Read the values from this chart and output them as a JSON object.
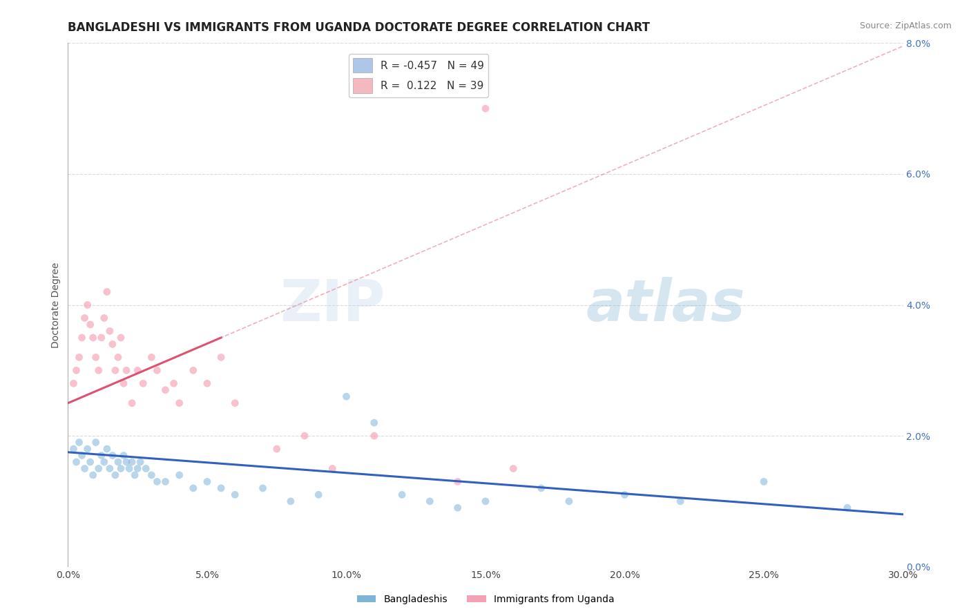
{
  "title": "BANGLADESHI VS IMMIGRANTS FROM UGANDA DOCTORATE DEGREE CORRELATION CHART",
  "source": "Source: ZipAtlas.com",
  "ylabel": "Doctorate Degree",
  "xlim": [
    0.0,
    30.0
  ],
  "ylim": [
    0.0,
    8.0
  ],
  "xticks": [
    0.0,
    5.0,
    10.0,
    15.0,
    20.0,
    25.0,
    30.0
  ],
  "yticks": [
    0.0,
    2.0,
    4.0,
    6.0,
    8.0
  ],
  "watermark_zip": "ZIP",
  "watermark_atlas": "atlas",
  "background_color": "#ffffff",
  "grid_color": "#cccccc",
  "blue_color": "#7fb3d8",
  "pink_color": "#f4a0b5",
  "blue_line_color": "#3060c0",
  "pink_line_color": "#e05070",
  "dashed_line_color": "#e08090",
  "blue_scatter": {
    "x": [
      0.2,
      0.3,
      0.4,
      0.5,
      0.6,
      0.7,
      0.8,
      0.9,
      1.0,
      1.1,
      1.2,
      1.3,
      1.4,
      1.5,
      1.6,
      1.7,
      1.8,
      1.9,
      2.0,
      2.1,
      2.2,
      2.3,
      2.4,
      2.5,
      2.6,
      2.8,
      3.0,
      3.2,
      3.5,
      4.0,
      4.5,
      5.0,
      5.5,
      6.0,
      7.0,
      8.0,
      9.0,
      10.0,
      11.0,
      12.0,
      13.0,
      14.0,
      15.0,
      17.0,
      18.0,
      20.0,
      22.0,
      25.0,
      28.0
    ],
    "y": [
      1.8,
      1.6,
      1.9,
      1.7,
      1.5,
      1.8,
      1.6,
      1.4,
      1.9,
      1.5,
      1.7,
      1.6,
      1.8,
      1.5,
      1.7,
      1.4,
      1.6,
      1.5,
      1.7,
      1.6,
      1.5,
      1.6,
      1.4,
      1.5,
      1.6,
      1.5,
      1.4,
      1.3,
      1.3,
      1.4,
      1.2,
      1.3,
      1.2,
      1.1,
      1.2,
      1.0,
      1.1,
      2.6,
      2.2,
      1.1,
      1.0,
      0.9,
      1.0,
      1.2,
      1.0,
      1.1,
      1.0,
      1.3,
      0.9
    ]
  },
  "pink_scatter": {
    "x": [
      0.2,
      0.3,
      0.4,
      0.5,
      0.6,
      0.7,
      0.8,
      0.9,
      1.0,
      1.1,
      1.2,
      1.3,
      1.4,
      1.5,
      1.6,
      1.7,
      1.8,
      1.9,
      2.0,
      2.1,
      2.3,
      2.5,
      2.7,
      3.0,
      3.2,
      3.5,
      3.8,
      4.0,
      4.5,
      5.0,
      5.5,
      6.0,
      7.5,
      8.5,
      9.5,
      11.0,
      14.0,
      15.0,
      16.0
    ],
    "y": [
      2.8,
      3.0,
      3.2,
      3.5,
      3.8,
      4.0,
      3.7,
      3.5,
      3.2,
      3.0,
      3.5,
      3.8,
      4.2,
      3.6,
      3.4,
      3.0,
      3.2,
      3.5,
      2.8,
      3.0,
      2.5,
      3.0,
      2.8,
      3.2,
      3.0,
      2.7,
      2.8,
      2.5,
      3.0,
      2.8,
      3.2,
      2.5,
      1.8,
      2.0,
      1.5,
      2.0,
      1.3,
      7.0,
      1.5
    ]
  },
  "title_fontsize": 12,
  "axis_label_fontsize": 10,
  "tick_fontsize": 10,
  "legend_fontsize": 11,
  "dot_size": 60
}
